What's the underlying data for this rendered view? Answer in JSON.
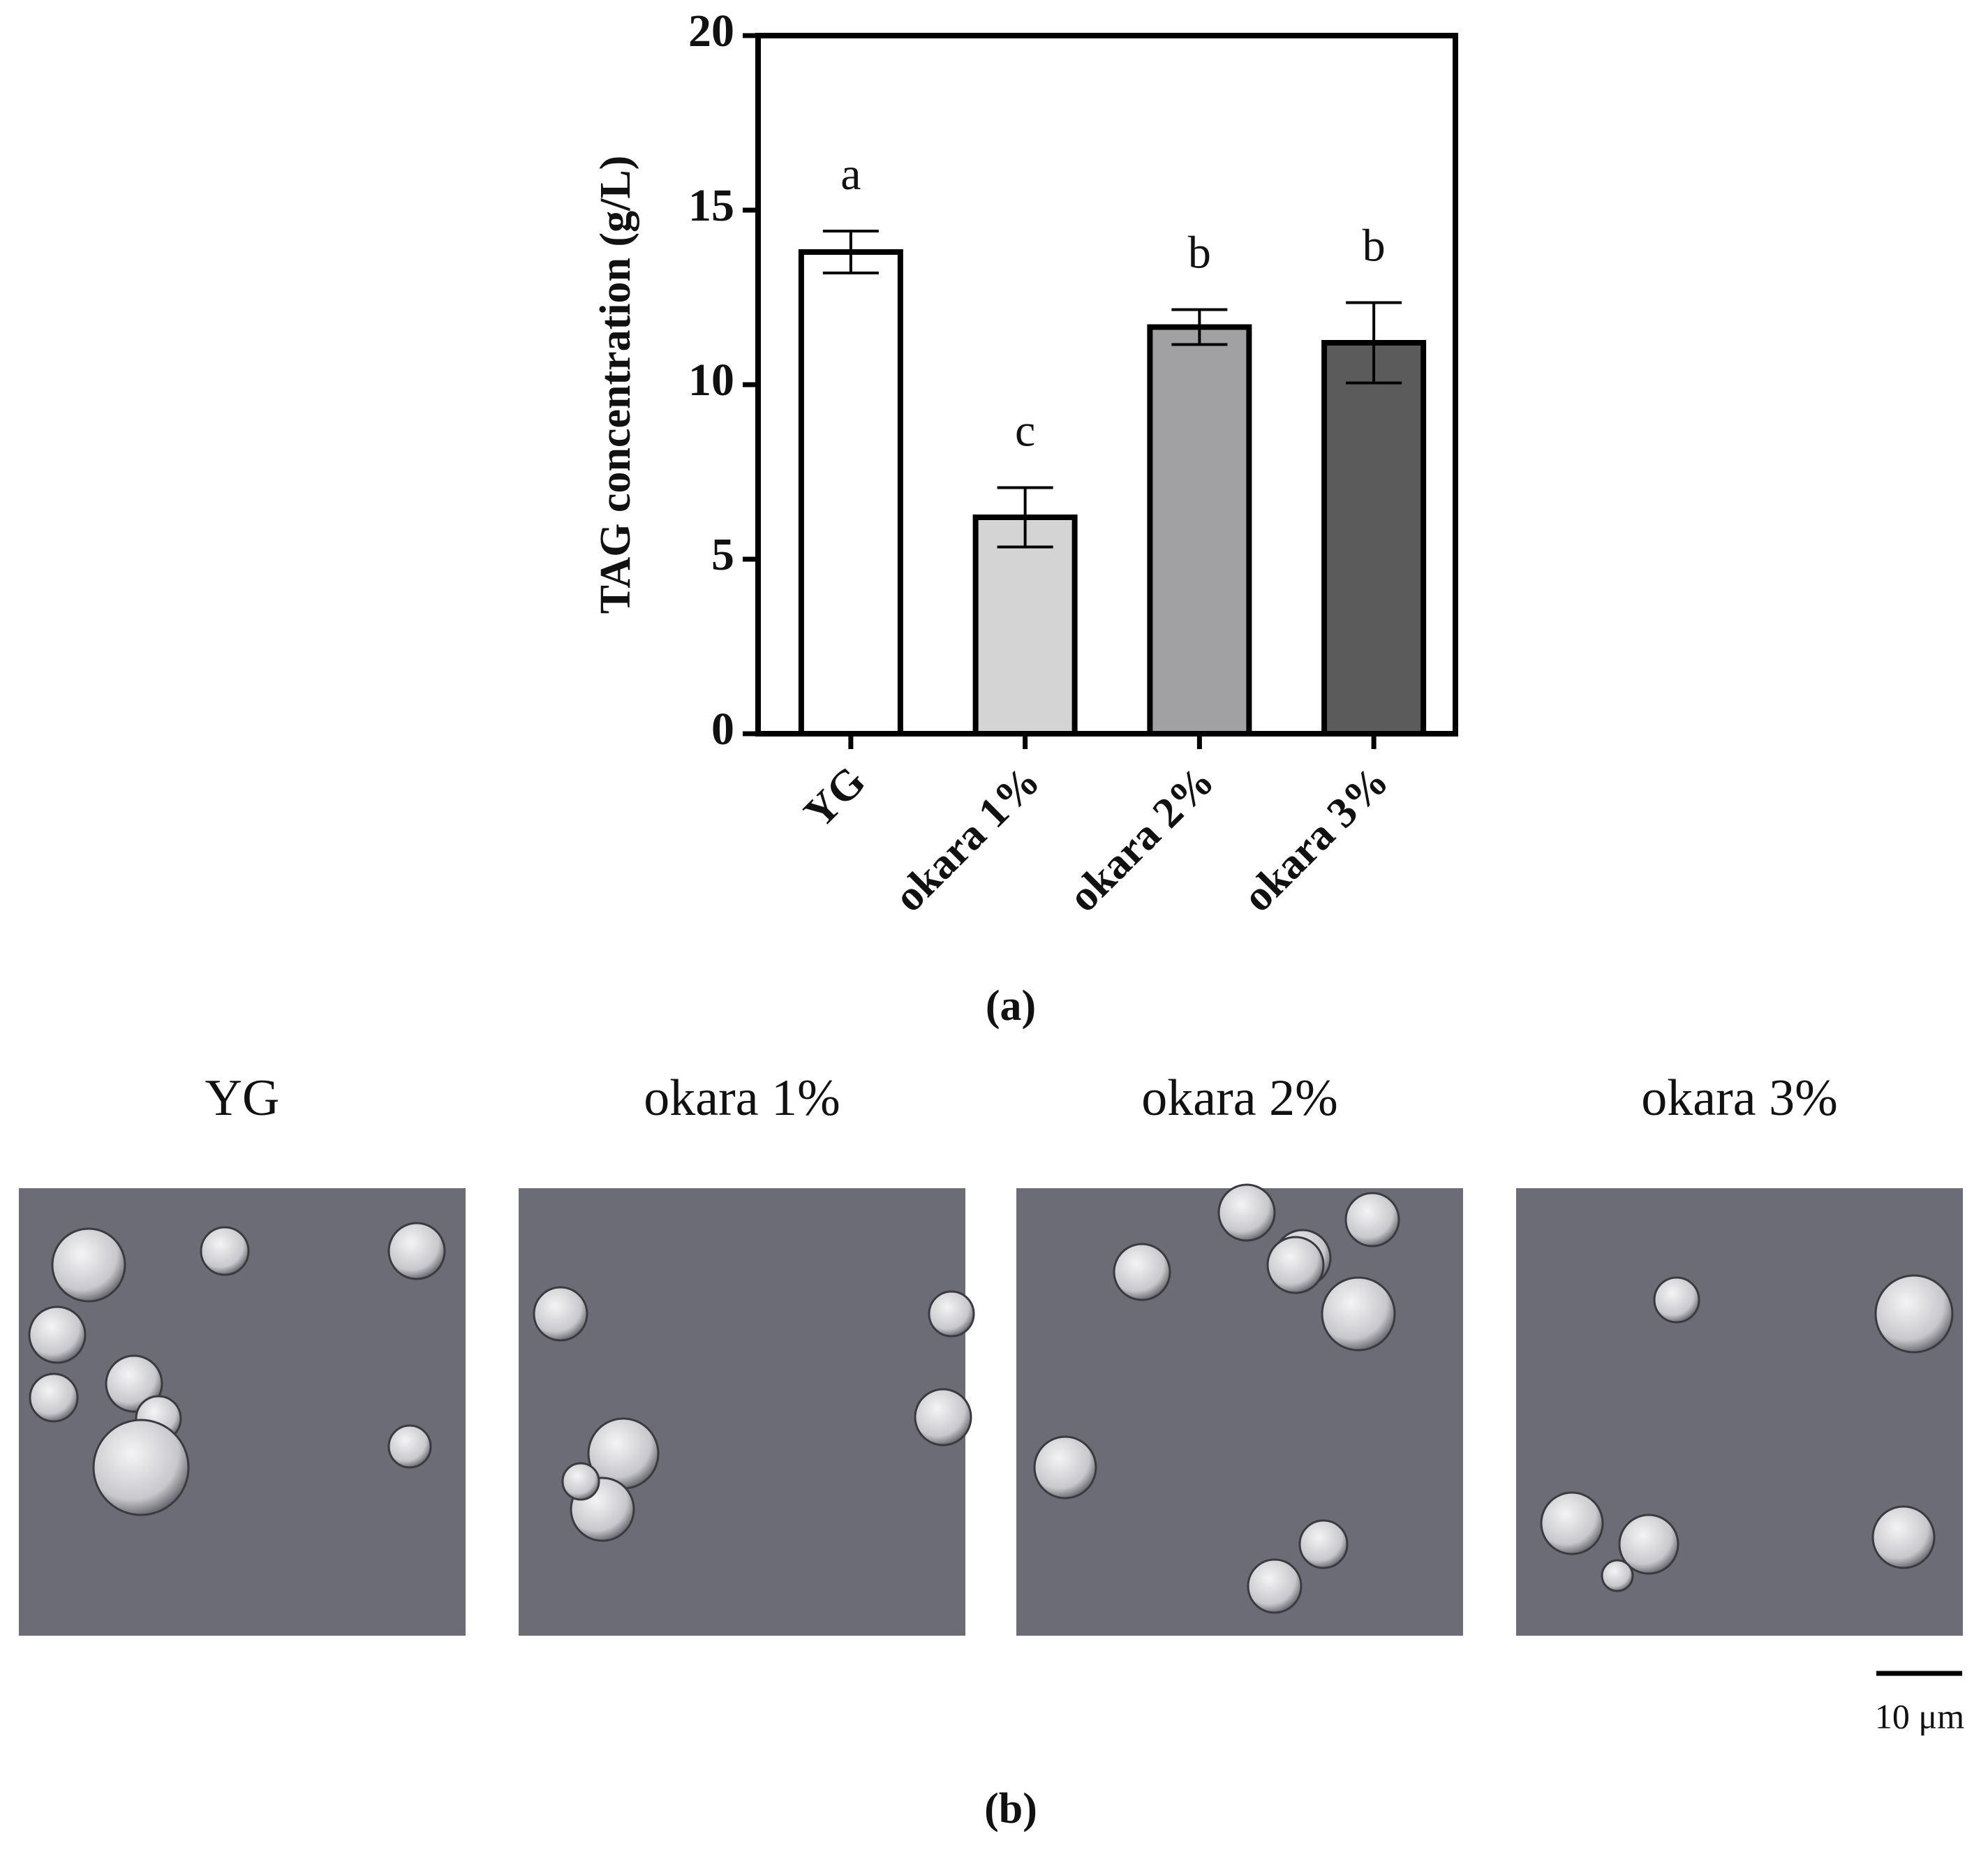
{
  "chart_data": {
    "type": "bar",
    "ylabel": "TAG concentration (g/L)",
    "categories": [
      "YG",
      "okara 1%",
      "okara 2%",
      "okara 3%"
    ],
    "values": [
      13.8,
      6.2,
      11.65,
      11.2
    ],
    "errors": [
      0.6,
      0.85,
      0.5,
      1.15
    ],
    "colors": [
      "#ffffff",
      "#d4d4d4",
      "#a1a1a4",
      "#5b5b5c"
    ],
    "annotations": [
      "a",
      "c",
      "b",
      "b"
    ],
    "ylim": [
      0,
      20
    ],
    "yticks": [
      0,
      5,
      10,
      15,
      20
    ],
    "panel_label": "(a)"
  },
  "panel_b": {
    "titles": [
      "YG",
      "okara 1%",
      "okara 2%",
      "okara 3%"
    ],
    "scale_bar": "10 μm",
    "panel_label": "(b)"
  }
}
